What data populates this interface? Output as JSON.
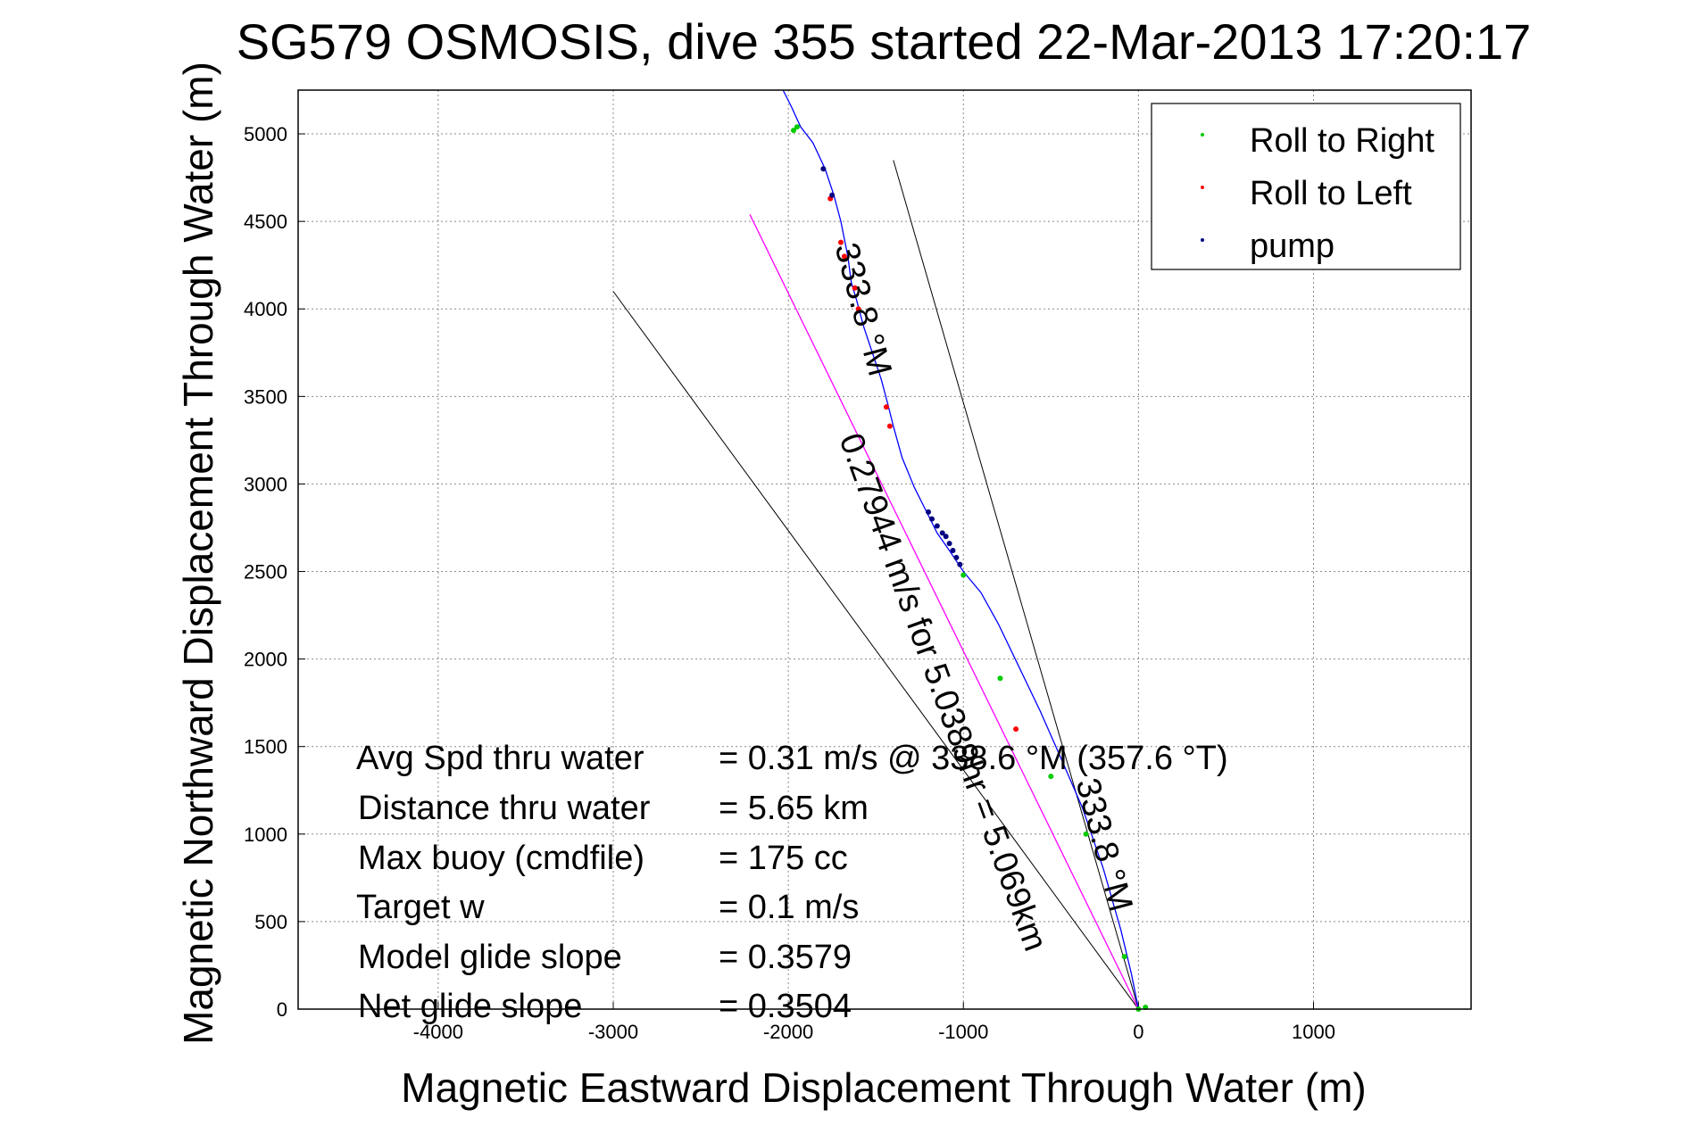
{
  "chart_data": {
    "type": "line",
    "title": "SG579 OSMOSIS, dive 355 started 22-Mar-2013 17:20:17",
    "xlabel": "Magnetic Eastward Displacement Through Water (m)",
    "ylabel": "Magnetic Northward Displacement Through Water (m)",
    "xlim": [
      -4800,
      1900
    ],
    "ylim": [
      0,
      5250
    ],
    "xticks": [
      -4000,
      -3000,
      -2000,
      -1000,
      0,
      1000
    ],
    "yticks": [
      0,
      500,
      1000,
      1500,
      2000,
      2500,
      3000,
      3500,
      4000,
      4500,
      5000
    ],
    "grid": true,
    "legend_placement": "top-right",
    "colors": {
      "track": "#0000ff",
      "roll_right": "#00cc00",
      "roll_left": "#ff0000",
      "pump": "#000080",
      "heading_line": "#ff00ff",
      "fan_line": "#000000"
    },
    "legend": [
      {
        "label": "Roll to Right",
        "color": "#00cc00"
      },
      {
        "label": "Roll to Left",
        "color": "#ff0000"
      },
      {
        "label": "pump",
        "color": "#000080"
      }
    ],
    "track": {
      "x": [
        0,
        -40,
        -100,
        -200,
        -320,
        -450,
        -560,
        -680,
        -800,
        -900,
        -1000,
        -1080,
        -1150,
        -1200,
        -1280,
        -1350,
        -1400,
        -1430,
        -1470,
        -1520,
        -1570,
        -1610,
        -1640,
        -1660,
        -1680,
        -1700,
        -1740,
        -1790,
        -1860,
        -1930,
        -1980,
        -2030
      ],
      "y": [
        0,
        200,
        450,
        800,
        1150,
        1450,
        1700,
        1950,
        2200,
        2380,
        2500,
        2620,
        2720,
        2820,
        2980,
        3150,
        3330,
        3450,
        3600,
        3750,
        3900,
        4050,
        4150,
        4300,
        4400,
        4500,
        4650,
        4800,
        4950,
        5040,
        5150,
        5300
      ]
    },
    "roll_right": {
      "x": [
        0,
        40,
        -80,
        -300,
        -500,
        -790,
        -1000,
        -1970,
        -1950
      ],
      "y": [
        0,
        10,
        300,
        1000,
        1330,
        1890,
        2480,
        5020,
        5040
      ]
    },
    "roll_left": {
      "x": [
        -700,
        -1420,
        -1440,
        -1600,
        -1620,
        -1680,
        -1700,
        -1760
      ],
      "y": [
        1600,
        3330,
        3440,
        4000,
        4120,
        4300,
        4380,
        4630
      ]
    },
    "pump": {
      "x": [
        -1200,
        -1180,
        -1150,
        -1120,
        -1100,
        -1080,
        -1060,
        -1040,
        -1020,
        -1750,
        -1800
      ],
      "y": [
        2840,
        2800,
        2760,
        2720,
        2700,
        2660,
        2620,
        2580,
        2540,
        4650,
        4800
      ]
    },
    "heading_line": {
      "x": [
        0,
        -2220
      ],
      "y": [
        0,
        4540
      ]
    },
    "fan_lines": [
      {
        "x": [
          0,
          -3000
        ],
        "y": [
          0,
          4100
        ]
      },
      {
        "x": [
          0,
          -1400
        ],
        "y": [
          0,
          4850
        ]
      }
    ],
    "annotations": [
      "Avg Spd thru water",
      "=  0.31 m/s @ 338.6 °M (357.6 °T)",
      "Distance thru water",
      "=  5.65 km",
      "Max buoy (cmdfile)",
      "= 175 cc",
      "Target w",
      "= 0.1 m/s",
      "Model glide slope",
      "= 0.3579",
      "Net glide slope",
      "= 0.3504"
    ],
    "line_labels": [
      "333.8 °M",
      "0.27944 m/s for 5.0389hr = 5.069km",
      "333.8 °M"
    ]
  }
}
